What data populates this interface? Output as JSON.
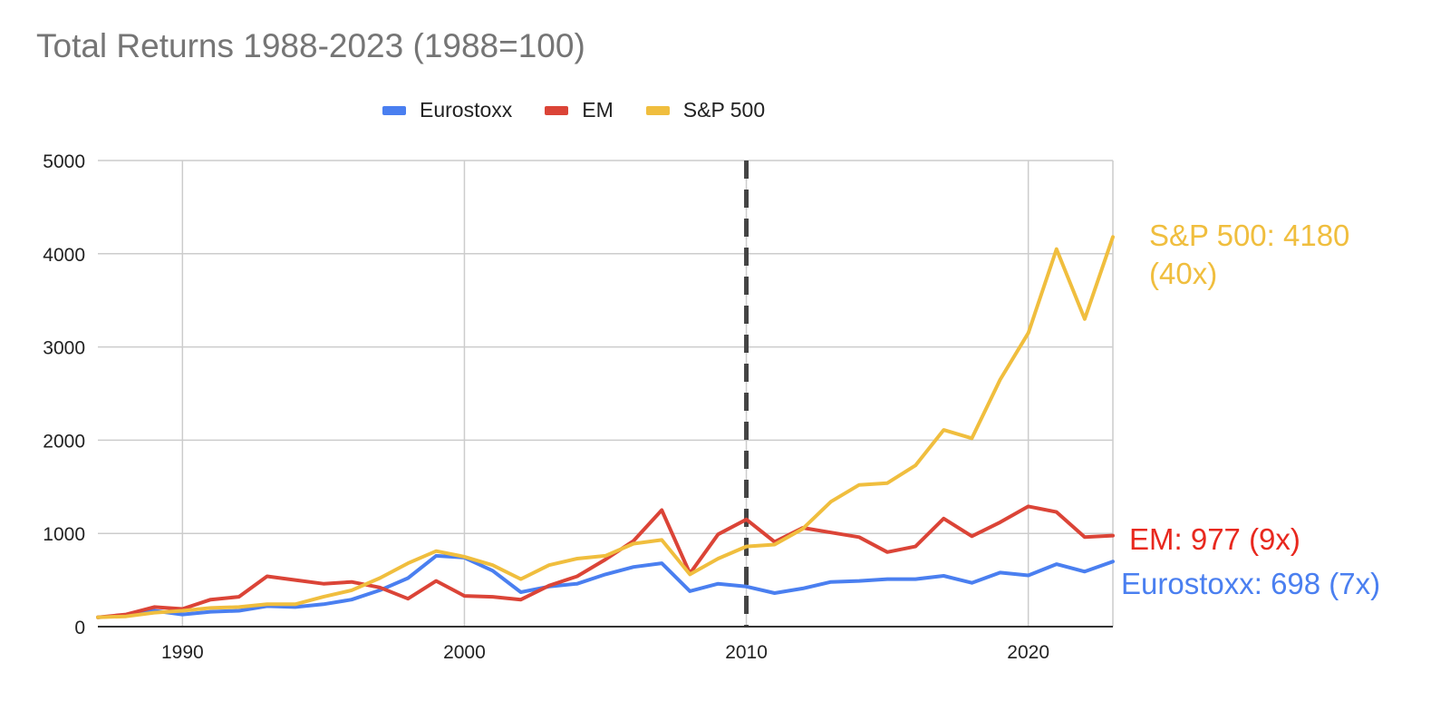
{
  "chart_data": {
    "type": "line",
    "title": "Total Returns 1988-2023 (1988=100)",
    "xlabel": "",
    "ylabel": "",
    "xlim": [
      1987,
      2023
    ],
    "ylim": [
      0,
      5000
    ],
    "x_ticks": [
      1990,
      2000,
      2010,
      2020
    ],
    "y_ticks": [
      0,
      1000,
      2000,
      3000,
      4000,
      5000
    ],
    "grid": true,
    "legend_position": "top",
    "vertical_marker": 2010,
    "x": [
      1987,
      1988,
      1989,
      1990,
      1991,
      1992,
      1993,
      1994,
      1995,
      1996,
      1997,
      1998,
      1999,
      2000,
      2001,
      2002,
      2003,
      2004,
      2005,
      2006,
      2007,
      2008,
      2009,
      2010,
      2011,
      2012,
      2013,
      2014,
      2015,
      2016,
      2017,
      2018,
      2019,
      2020,
      2021,
      2022,
      2023
    ],
    "series": [
      {
        "name": "Eurostoxx",
        "color": "#4a7ff0",
        "values": [
          100,
          120,
          170,
          130,
          160,
          170,
          220,
          210,
          240,
          290,
          390,
          520,
          760,
          740,
          600,
          370,
          430,
          460,
          560,
          640,
          680,
          380,
          460,
          430,
          360,
          410,
          480,
          490,
          510,
          510,
          545,
          470,
          580,
          550,
          670,
          590,
          698
        ]
      },
      {
        "name": "EM",
        "color": "#db4437",
        "values": [
          100,
          130,
          210,
          190,
          290,
          320,
          540,
          500,
          460,
          480,
          420,
          300,
          490,
          330,
          320,
          290,
          440,
          540,
          720,
          920,
          1250,
          570,
          990,
          1150,
          910,
          1060,
          1010,
          960,
          800,
          860,
          1160,
          970,
          1120,
          1290,
          1230,
          960,
          977
        ]
      },
      {
        "name": "S&P 500",
        "color": "#f0be3e",
        "values": [
          100,
          110,
          150,
          170,
          200,
          210,
          240,
          240,
          320,
          390,
          520,
          680,
          810,
          750,
          660,
          510,
          660,
          730,
          760,
          890,
          930,
          560,
          730,
          860,
          880,
          1050,
          1340,
          1520,
          1540,
          1730,
          2110,
          2020,
          2650,
          3150,
          4050,
          3300,
          4180
        ]
      }
    ],
    "annotations": [
      {
        "series": "S&P 500",
        "lines": [
          "S&P 500: 4180",
          "(40x)"
        ],
        "color": "#f0be3e"
      },
      {
        "series": "EM",
        "lines": [
          "EM: 977 (9x)"
        ],
        "color": "#e8281e"
      },
      {
        "series": "Eurostoxx",
        "lines": [
          "Eurostoxx: 698 (7x)"
        ],
        "color": "#4a7ff0"
      }
    ]
  }
}
